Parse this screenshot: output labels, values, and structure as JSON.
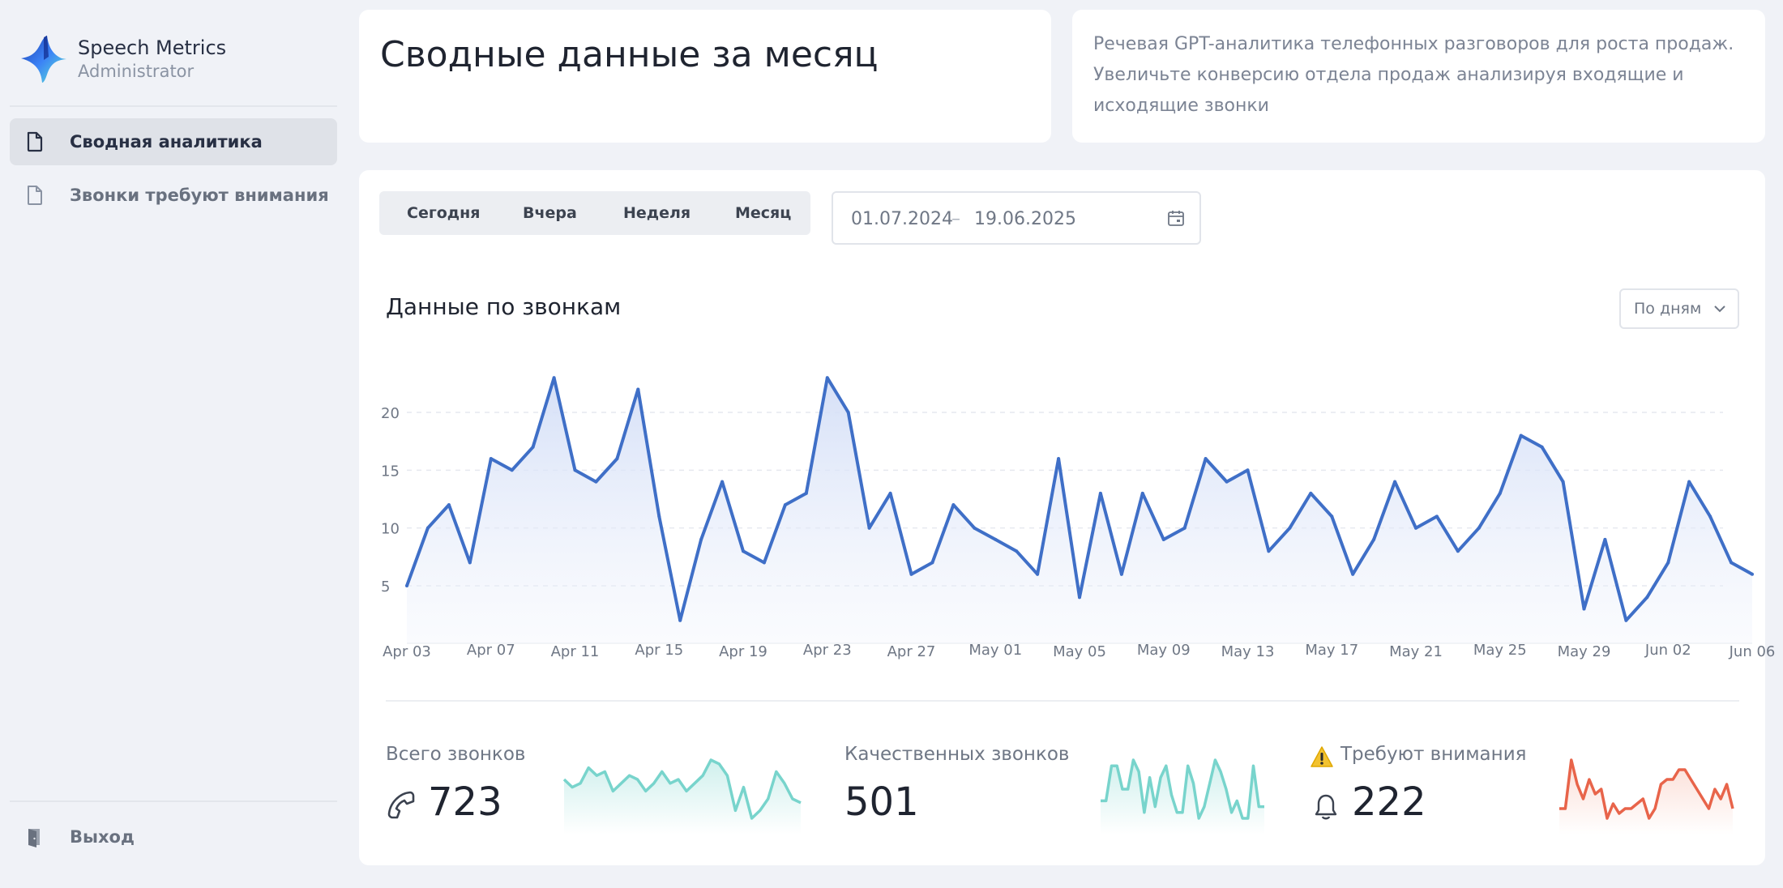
{
  "brand": {
    "name": "Speech Metrics",
    "role": "Administrator"
  },
  "sidebar": {
    "items": [
      {
        "label": "Сводная аналитика",
        "active": true,
        "icon": "document-icon"
      },
      {
        "label": "Звонки требуют внимания",
        "active": false,
        "icon": "document-icon"
      }
    ],
    "logout": {
      "label": "Выход",
      "icon": "door-icon"
    }
  },
  "header": {
    "title": "Сводные данные за месяц",
    "description": "Речевая GPT-аналитика телефонных разговоров для роста продаж. Увеличьте конверсию отдела продаж анализируя входящие и исходящие звонки"
  },
  "filters": {
    "periods": [
      "Сегодня",
      "Вчера",
      "Неделя",
      "Месяц"
    ],
    "date_from": "01.07.2024",
    "date_sep": "–",
    "date_to": "19.06.2025",
    "calendar_icon": "calendar-icon"
  },
  "chart_section": {
    "title": "Данные по звонкам",
    "grouping": "По дням",
    "grouping_icon": "chevron-down-icon"
  },
  "colors": {
    "line": "#3f6fc7",
    "fill": "#dbe4f8",
    "teal": "#78d4cc",
    "red": "#e8644a",
    "warning": "#f2c230"
  },
  "chart_data": {
    "type": "area",
    "title": "",
    "xlabel": "",
    "ylabel": "",
    "ylim": [
      1,
      24
    ],
    "yticks": [
      5,
      10,
      15,
      20
    ],
    "grid": true,
    "x_tick_labels": [
      "Apr 03",
      "Apr 07",
      "Apr 11",
      "Apr 15",
      "Apr 19",
      "Apr 23",
      "Apr 27",
      "May 01",
      "May 05",
      "May 09",
      "May 13",
      "May 17",
      "May 21",
      "May 25",
      "May 29",
      "Jun 02",
      "Jun 06"
    ],
    "x_tick_every": 4,
    "series": [
      {
        "values": [
          5,
          10,
          12,
          7,
          16,
          15,
          17,
          23,
          15,
          14,
          16,
          22,
          11,
          2,
          9,
          14,
          8,
          7,
          12,
          13,
          23,
          20,
          10,
          13,
          6,
          7,
          12,
          10,
          9,
          8,
          6,
          16,
          4,
          13,
          6,
          13,
          9,
          10,
          16,
          14,
          15,
          8,
          10,
          13,
          11,
          6,
          9,
          14,
          10,
          11,
          8,
          10,
          13,
          18,
          17,
          14,
          3,
          9,
          2,
          4,
          7,
          14,
          11,
          7,
          6
        ]
      }
    ]
  },
  "kpis": [
    {
      "label": "Всего звонков",
      "value": "723",
      "icon": "phone-icon",
      "spark": [
        6,
        4,
        5,
        9,
        7,
        8,
        3,
        5,
        7,
        6,
        3,
        5,
        8,
        5,
        6,
        3,
        5,
        7,
        11,
        10,
        7,
        -2,
        4,
        -4,
        -2,
        1,
        8,
        5,
        1,
        0
      ]
    },
    {
      "label": "Качественных звонков",
      "value": "501",
      "icon": "",
      "spark": [
        3,
        3,
        9,
        9,
        5,
        5,
        10,
        8,
        1,
        7,
        2,
        7,
        9,
        4,
        1,
        1,
        9,
        6,
        0,
        2,
        6,
        10,
        8,
        5,
        1,
        3,
        0,
        0,
        9,
        2,
        2
      ]
    },
    {
      "label": "Требуют внимания",
      "value": "222",
      "icon": "bell-icon",
      "warning_icon": "warning-icon",
      "spark": [
        2,
        2,
        12,
        7,
        4,
        8,
        5,
        6,
        0,
        3,
        1,
        2,
        2,
        3,
        4,
        0,
        2,
        7,
        8,
        8,
        10,
        10,
        8,
        6,
        4,
        2,
        6,
        4,
        7,
        2
      ]
    }
  ]
}
